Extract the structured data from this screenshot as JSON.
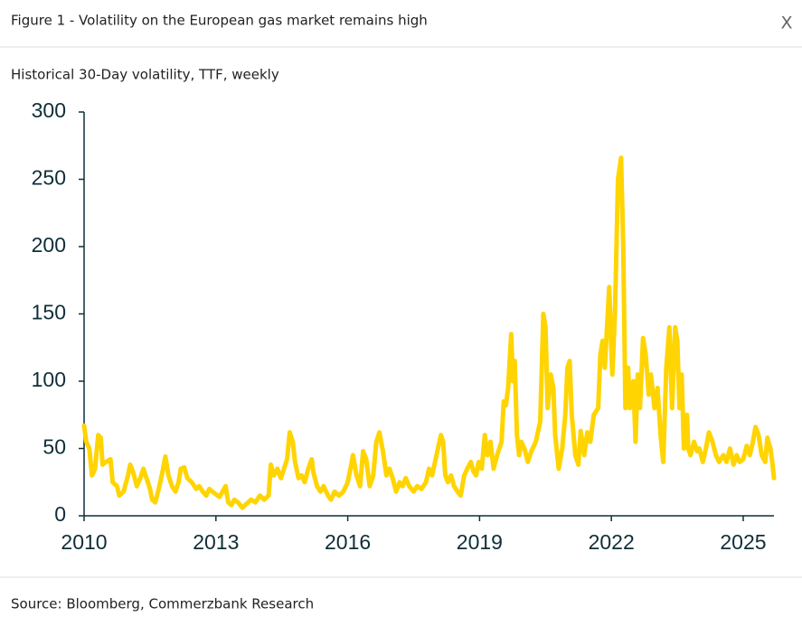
{
  "close_button": "X",
  "chart_data": {
    "type": "line",
    "title": "Figure 1 - Volatility on the European gas market remains high",
    "subtitle": "Historical 30-Day volatility, TTF, weekly",
    "source": "Source: Bloomberg, Commerzbank Research",
    "x": [
      2010.0,
      2010.05,
      2010.12,
      2010.18,
      2010.25,
      2010.32,
      2010.38,
      2010.42,
      2010.5,
      2010.6,
      2010.65,
      2010.75,
      2010.8,
      2010.9,
      2011.0,
      2011.05,
      2011.12,
      2011.2,
      2011.28,
      2011.35,
      2011.42,
      2011.5,
      2011.55,
      2011.62,
      2011.7,
      2011.78,
      2011.85,
      2011.92,
      2012.0,
      2012.08,
      2012.15,
      2012.2,
      2012.28,
      2012.35,
      2012.45,
      2012.55,
      2012.62,
      2012.7,
      2012.78,
      2012.85,
      2012.92,
      2013.0,
      2013.08,
      2013.15,
      2013.22,
      2013.28,
      2013.35,
      2013.42,
      2013.5,
      2013.6,
      2013.7,
      2013.8,
      2013.9,
      2014.0,
      2014.1,
      2014.2,
      2014.25,
      2014.32,
      2014.4,
      2014.48,
      2014.55,
      2014.62,
      2014.68,
      2014.75,
      2014.8,
      2014.88,
      2014.95,
      2015.02,
      2015.1,
      2015.18,
      2015.22,
      2015.3,
      2015.38,
      2015.45,
      2015.55,
      2015.62,
      2015.7,
      2015.8,
      2015.9,
      2016.0,
      2016.08,
      2016.12,
      2016.2,
      2016.28,
      2016.35,
      2016.42,
      2016.5,
      2016.58,
      2016.65,
      2016.72,
      2016.8,
      2016.88,
      2016.95,
      2017.02,
      2017.1,
      2017.18,
      2017.25,
      2017.32,
      2017.4,
      2017.5,
      2017.58,
      2017.68,
      2017.78,
      2017.85,
      2017.92,
      2018.0,
      2018.12,
      2018.17,
      2018.22,
      2018.28,
      2018.35,
      2018.42,
      2018.5,
      2018.57,
      2018.65,
      2018.72,
      2018.8,
      2018.86,
      2018.92,
      2018.98,
      2019.05,
      2019.12,
      2019.18,
      2019.25,
      2019.32,
      2019.4,
      2019.5,
      2019.55,
      2019.6,
      2019.65,
      2019.72,
      2019.76,
      2019.8,
      2019.85,
      2019.9,
      2019.95,
      2020.02,
      2020.1,
      2020.18,
      2020.28,
      2020.38,
      2020.45,
      2020.5,
      2020.55,
      2020.62,
      2020.68,
      2020.72,
      2020.8,
      2020.88,
      2020.95,
      2021.0,
      2021.05,
      2021.1,
      2021.18,
      2021.25,
      2021.3,
      2021.38,
      2021.45,
      2021.52,
      2021.6,
      2021.7,
      2021.75,
      2021.8,
      2021.85,
      2021.95,
      2022.02,
      2022.08,
      2022.15,
      2022.22,
      2022.27,
      2022.32,
      2022.38,
      2022.42,
      2022.5,
      2022.55,
      2022.6,
      2022.65,
      2022.72,
      2022.78,
      2022.85,
      2022.9,
      2022.98,
      2023.05,
      2023.12,
      2023.18,
      2023.25,
      2023.32,
      2023.38,
      2023.45,
      2023.5,
      2023.55,
      2023.6,
      2023.65,
      2023.72,
      2023.75,
      2023.8,
      2023.88,
      2023.95,
      2024.0,
      2024.08,
      2024.15,
      2024.22,
      2024.3,
      2024.38,
      2024.45,
      2024.55,
      2024.62,
      2024.7,
      2024.78,
      2024.85,
      2024.92,
      2025.0,
      2025.08,
      2025.15,
      2025.22,
      2025.28,
      2025.35,
      2025.42,
      2025.5,
      2025.55,
      2025.62,
      2025.66,
      2025.7
    ],
    "series": [
      {
        "color": "#ffd400",
        "values": [
          67,
          55,
          50,
          30,
          35,
          60,
          58,
          38,
          40,
          42,
          25,
          22,
          15,
          18,
          30,
          38,
          32,
          22,
          28,
          35,
          28,
          20,
          12,
          10,
          20,
          32,
          44,
          30,
          22,
          18,
          25,
          35,
          36,
          28,
          25,
          20,
          22,
          18,
          15,
          20,
          18,
          16,
          14,
          18,
          22,
          10,
          8,
          12,
          10,
          6,
          9,
          12,
          10,
          15,
          12,
          15,
          38,
          30,
          35,
          28,
          35,
          42,
          62,
          55,
          40,
          28,
          30,
          25,
          35,
          42,
          32,
          22,
          18,
          22,
          15,
          12,
          18,
          15,
          18,
          25,
          38,
          45,
          30,
          22,
          48,
          42,
          22,
          30,
          55,
          62,
          48,
          30,
          35,
          28,
          18,
          25,
          22,
          28,
          22,
          18,
          22,
          20,
          25,
          35,
          30,
          42,
          60,
          55,
          30,
          25,
          30,
          22,
          18,
          15,
          30,
          35,
          40,
          33,
          30,
          40,
          35,
          60,
          45,
          55,
          35,
          45,
          55,
          85,
          82,
          95,
          135,
          100,
          115,
          60,
          45,
          55,
          50,
          40,
          48,
          55,
          70,
          150,
          140,
          80,
          105,
          95,
          60,
          35,
          50,
          75,
          110,
          115,
          75,
          45,
          38,
          63,
          45,
          62,
          55,
          75,
          80,
          120,
          130,
          110,
          170,
          105,
          150,
          250,
          266,
          200,
          80,
          110,
          80,
          100,
          55,
          105,
          80,
          132,
          120,
          90,
          105,
          80,
          95,
          60,
          40,
          110,
          140,
          80,
          140,
          130,
          80,
          105,
          50,
          75,
          50,
          45,
          55,
          48,
          50,
          40,
          50,
          62,
          55,
          45,
          40,
          45,
          40,
          50,
          38,
          45,
          40,
          42,
          52,
          45,
          55,
          66,
          60,
          45,
          40,
          58,
          50,
          40,
          28
        ]
      }
    ],
    "xlim": [
      2010,
      2025.7
    ],
    "xticks": [
      2010,
      2013,
      2016,
      2019,
      2022,
      2025
    ],
    "ylim": [
      0,
      300
    ],
    "yticks": [
      0,
      50,
      100,
      150,
      200,
      250,
      300
    ]
  }
}
